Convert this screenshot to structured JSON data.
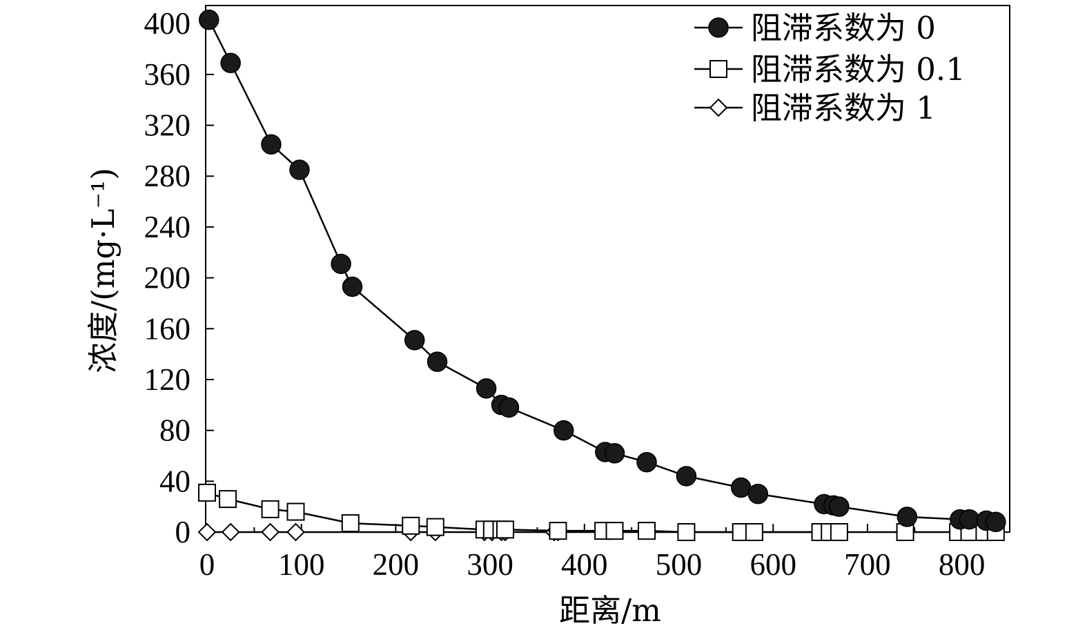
{
  "chart_data": {
    "type": "line",
    "title": "",
    "xlabel": "距离/m",
    "ylabel": "浓度/(mg·L⁻¹)",
    "xlim": [
      0,
      850
    ],
    "ylim": [
      0,
      400
    ],
    "xticks": [
      0,
      100,
      200,
      300,
      400,
      500,
      600,
      700,
      800
    ],
    "yticks": [
      0,
      40,
      80,
      120,
      160,
      200,
      240,
      280,
      320,
      360,
      400
    ],
    "grid": false,
    "legend_position": "top-right",
    "series": [
      {
        "name": "阻滞系数为 0",
        "marker": "filled-circle",
        "color": "#000000",
        "x": [
          2,
          25,
          68,
          98,
          142,
          154,
          220,
          244,
          296,
          312,
          320,
          378,
          422,
          432,
          466,
          508,
          566,
          584,
          654,
          664,
          670,
          742,
          798,
          808,
          826,
          836
        ],
        "y": [
          403,
          369,
          305,
          285,
          211,
          193,
          151,
          134,
          113,
          100,
          98,
          80,
          63,
          62,
          55,
          44,
          35,
          30,
          22,
          21,
          20,
          12,
          10,
          10,
          9,
          8
        ]
      },
      {
        "name": "阻滞系数为 0.1",
        "marker": "open-square",
        "color": "#000000",
        "x": [
          0,
          22,
          67,
          94,
          152,
          216,
          242,
          294,
          302,
          312,
          316,
          372,
          420,
          432,
          466,
          508,
          566,
          580,
          650,
          660,
          670,
          740,
          796,
          808,
          824,
          836
        ],
        "y": [
          31,
          26,
          18,
          16,
          7,
          5,
          4,
          2,
          2,
          2,
          2,
          1,
          1,
          1,
          1,
          0,
          0,
          0,
          0,
          0,
          0,
          0,
          0,
          0,
          0,
          0
        ]
      },
      {
        "name": "阻滞系数为 1",
        "marker": "open-diamond",
        "color": "#000000",
        "x": [
          0,
          25,
          67,
          94,
          216,
          242,
          294,
          302,
          312,
          316,
          368,
          372,
          508,
          566,
          580,
          650,
          660,
          670
        ],
        "y": [
          0,
          0,
          0,
          0,
          0,
          0,
          0,
          0,
          0,
          0,
          0,
          0,
          0,
          0,
          0,
          0,
          0,
          0
        ]
      }
    ]
  }
}
